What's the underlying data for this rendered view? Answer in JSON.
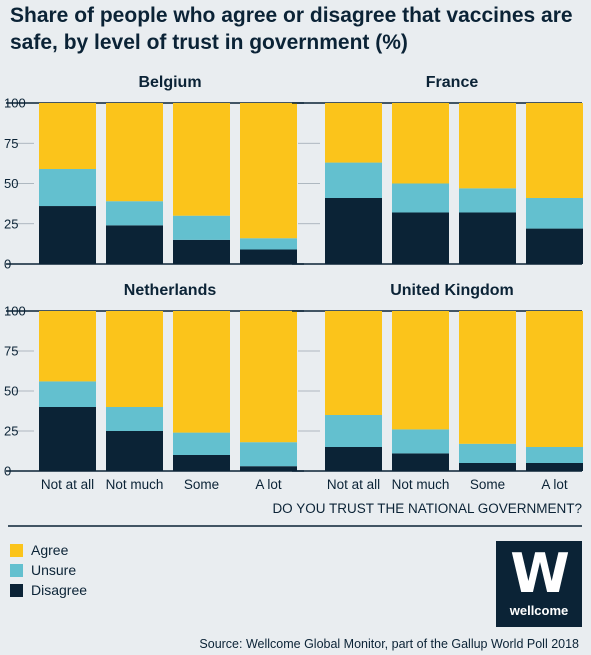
{
  "header": {
    "title": "Share of people who agree or disagree that vaccines are safe, by level of trust in government (%)"
  },
  "chart_data": {
    "type": "bar",
    "stacked": true,
    "categories": [
      "Not at all",
      "Not much",
      "Some",
      "A lot"
    ],
    "xlabel": "DO YOU TRUST THE NATIONAL GOVERNMENT?",
    "ylim": [
      0,
      100
    ],
    "yticks": [
      "100",
      "75",
      "50",
      "25",
      "0"
    ],
    "series_names": [
      "Agree",
      "Unsure",
      "Disagree"
    ],
    "colors": {
      "Agree": "#fbc41b",
      "Unsure": "#63c0cf",
      "Disagree": "#0b2336"
    },
    "panels": [
      {
        "title": "Belgium",
        "series": [
          {
            "name": "Disagree",
            "values": [
              36,
              24,
              15,
              9
            ]
          },
          {
            "name": "Unsure",
            "values": [
              23,
              15,
              15,
              7
            ]
          },
          {
            "name": "Agree",
            "values": [
              41,
              61,
              70,
              84
            ]
          }
        ]
      },
      {
        "title": "France",
        "series": [
          {
            "name": "Disagree",
            "values": [
              41,
              32,
              32,
              22
            ]
          },
          {
            "name": "Unsure",
            "values": [
              22,
              18,
              15,
              19
            ]
          },
          {
            "name": "Agree",
            "values": [
              37,
              50,
              53,
              59
            ]
          }
        ]
      },
      {
        "title": "Netherlands",
        "series": [
          {
            "name": "Disagree",
            "values": [
              40,
              25,
              10,
              3
            ]
          },
          {
            "name": "Unsure",
            "values": [
              16,
              15,
              14,
              15
            ]
          },
          {
            "name": "Agree",
            "values": [
              44,
              60,
              76,
              82
            ]
          }
        ]
      },
      {
        "title": "United Kingdom",
        "series": [
          {
            "name": "Disagree",
            "values": [
              15,
              11,
              5,
              5
            ]
          },
          {
            "name": "Unsure",
            "values": [
              20,
              15,
              12,
              10
            ]
          },
          {
            "name": "Agree",
            "values": [
              65,
              74,
              83,
              85
            ]
          }
        ]
      }
    ]
  },
  "legend": {
    "items": [
      {
        "label": "Agree",
        "color": "#fbc41b"
      },
      {
        "label": "Unsure",
        "color": "#63c0cf"
      },
      {
        "label": "Disagree",
        "color": "#0b2336"
      }
    ]
  },
  "logo": {
    "mark": "W",
    "text": "wellcome"
  },
  "footer": {
    "source": "Source: Wellcome Global Monitor, part of the Gallup World Poll 2018"
  }
}
